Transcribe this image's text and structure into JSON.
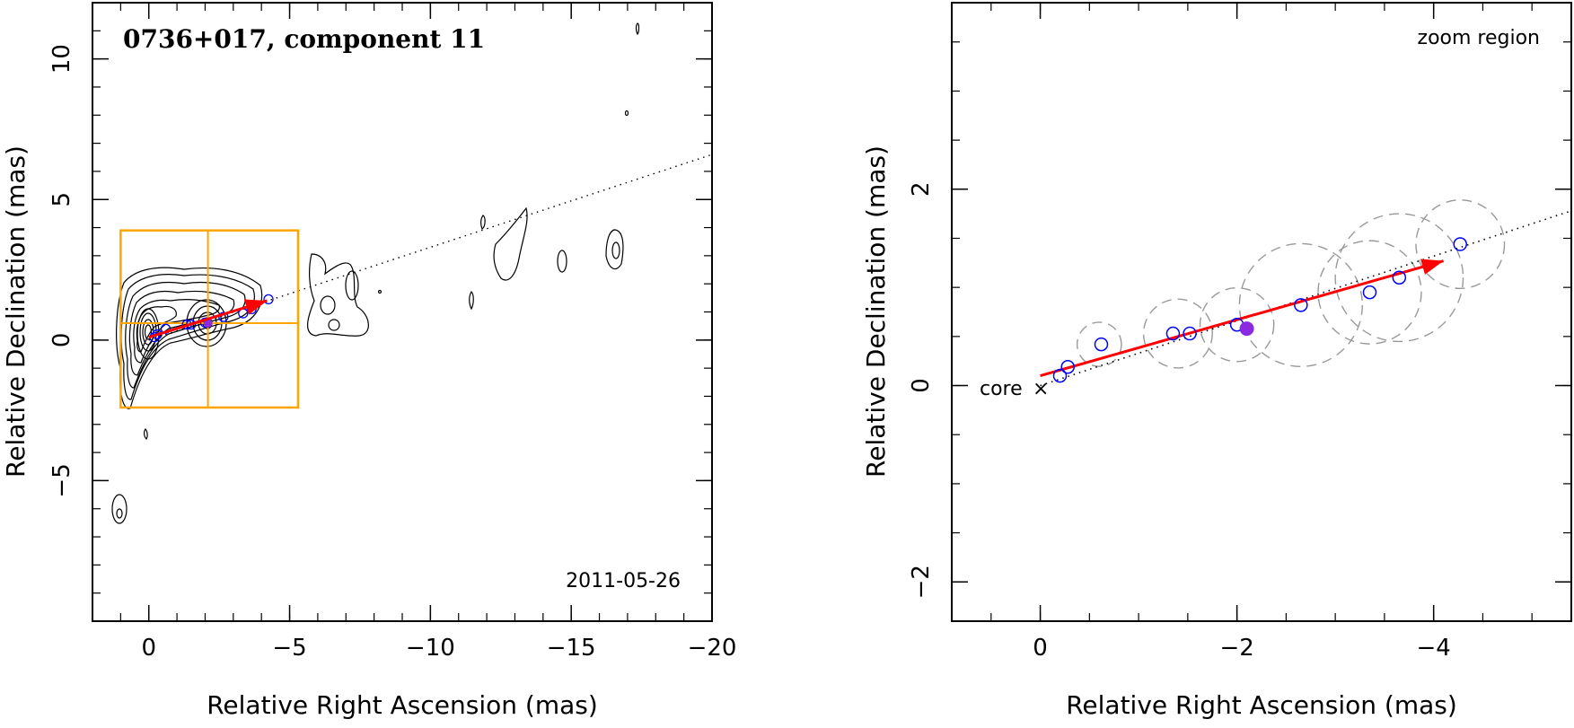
{
  "colors": {
    "box": "#FFA500",
    "arrow": "#FF0000",
    "circle": "#0000FF",
    "filled": "#8A2BE2",
    "dashed": "#999999",
    "axis": "#000000"
  },
  "chart_data": [
    {
      "type": "scatter",
      "title": "0736+017, component 11",
      "date": "2011-05-26",
      "xlabel": "Relative Right Ascension (mas)",
      "ylabel": "Relative Declination (mas)",
      "xlim": [
        2,
        -20
      ],
      "ylim": [
        -10,
        12
      ],
      "xticks": [
        0,
        -5,
        -10,
        -15,
        -20
      ],
      "xtick_labels": [
        "0",
        "−5",
        "−10",
        "−15",
        "−20"
      ],
      "yticks": [
        10,
        5,
        0,
        -5
      ],
      "ytick_labels": [
        "10",
        "5",
        "0",
        "−5"
      ],
      "direction_line": {
        "from": [
          0,
          0
        ],
        "to": [
          -20,
          6.6
        ]
      },
      "zoom_box": {
        "x": [
          1,
          -5.3
        ],
        "y": [
          -2.4,
          3.9
        ],
        "cross": [
          -2.1,
          0.6
        ]
      },
      "arrow": {
        "from": [
          0,
          0.1
        ],
        "to": [
          -4.2,
          1.4
        ]
      },
      "points": [
        {
          "x": -0.2,
          "y": 0.1
        },
        {
          "x": -0.3,
          "y": 0.2
        },
        {
          "x": -0.6,
          "y": 0.4
        },
        {
          "x": -1.35,
          "y": 0.55
        },
        {
          "x": -1.5,
          "y": 0.55
        },
        {
          "x": -2.0,
          "y": 0.62
        },
        {
          "x": -2.65,
          "y": 0.82
        },
        {
          "x": -3.35,
          "y": 0.95
        },
        {
          "x": -3.65,
          "y": 1.1
        },
        {
          "x": -4.25,
          "y": 1.45
        }
      ],
      "filled_point": {
        "x": -2.1,
        "y": 0.6
      }
    },
    {
      "type": "scatter",
      "title": "zoom region",
      "xlabel": "Relative Right Ascension (mas)",
      "ylabel": "Relative Declination (mas)",
      "xlim": [
        0.9,
        -5.4
      ],
      "ylim": [
        -2.4,
        3.9
      ],
      "xticks": [
        0,
        -2,
        -4
      ],
      "xtick_labels": [
        "0",
        "−2",
        "−4"
      ],
      "yticks": [
        2,
        0,
        -2
      ],
      "ytick_labels": [
        "2",
        "0",
        "−2"
      ],
      "core_label": "core",
      "core_marker": "×",
      "direction_line": {
        "from": [
          0,
          0
        ],
        "to": [
          -5.4,
          1.78
        ]
      },
      "arrow": {
        "from": [
          0,
          0.1
        ],
        "to": [
          -4.1,
          1.27
        ]
      },
      "points": [
        {
          "x": -0.2,
          "y": 0.1
        },
        {
          "x": -0.28,
          "y": 0.19
        },
        {
          "x": -0.62,
          "y": 0.42
        },
        {
          "x": -1.35,
          "y": 0.53
        },
        {
          "x": -1.52,
          "y": 0.53
        },
        {
          "x": -2.0,
          "y": 0.62
        },
        {
          "x": -2.65,
          "y": 0.82
        },
        {
          "x": -3.35,
          "y": 0.95
        },
        {
          "x": -3.65,
          "y": 1.1
        },
        {
          "x": -4.27,
          "y": 1.44
        }
      ],
      "filled_point": {
        "x": -2.1,
        "y": 0.58
      },
      "component_sizes": [
        {
          "x": -0.6,
          "y": 0.42,
          "d": 0.45
        },
        {
          "x": -1.4,
          "y": 0.53,
          "d": 0.7
        },
        {
          "x": -2.0,
          "y": 0.62,
          "d": 0.75
        },
        {
          "x": -2.65,
          "y": 0.82,
          "d": 1.25
        },
        {
          "x": -3.35,
          "y": 0.95,
          "d": 1.05
        },
        {
          "x": -3.65,
          "y": 1.1,
          "d": 1.3
        },
        {
          "x": -4.27,
          "y": 1.44,
          "d": 0.9
        }
      ]
    }
  ]
}
